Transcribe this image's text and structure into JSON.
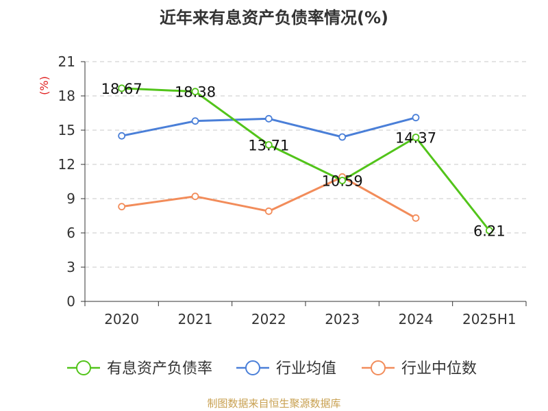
{
  "title": "近年来有息资产负债率情况(%)",
  "source": "制图数据来自恒生聚源数据库",
  "chart_data": {
    "type": "line",
    "title": "近年来有息资产负债率情况(%)",
    "ylabel": "(%)",
    "categories": [
      "2020",
      "2021",
      "2022",
      "2023",
      "2024",
      "2025H1"
    ],
    "ylim": [
      0,
      21
    ],
    "yticks": [
      0,
      3,
      6,
      9,
      12,
      15,
      18,
      21
    ],
    "grid": true,
    "legend_position": "bottom",
    "series": [
      {
        "name": "有息资产负债率",
        "color": "#52c41a",
        "values": [
          18.67,
          18.38,
          13.71,
          10.59,
          14.37,
          6.21
        ],
        "data_labels": [
          "18.67",
          "18.38",
          "13.71",
          "10.59",
          "14.37",
          "6.21"
        ]
      },
      {
        "name": "行业均值",
        "color": "#4a7fd8",
        "values": [
          14.5,
          15.8,
          16.0,
          14.4,
          16.1,
          null
        ],
        "data_labels": null
      },
      {
        "name": "行业中位数",
        "color": "#f28c5a",
        "values": [
          8.3,
          9.2,
          7.9,
          10.9,
          7.3,
          null
        ],
        "data_labels": null
      }
    ]
  }
}
